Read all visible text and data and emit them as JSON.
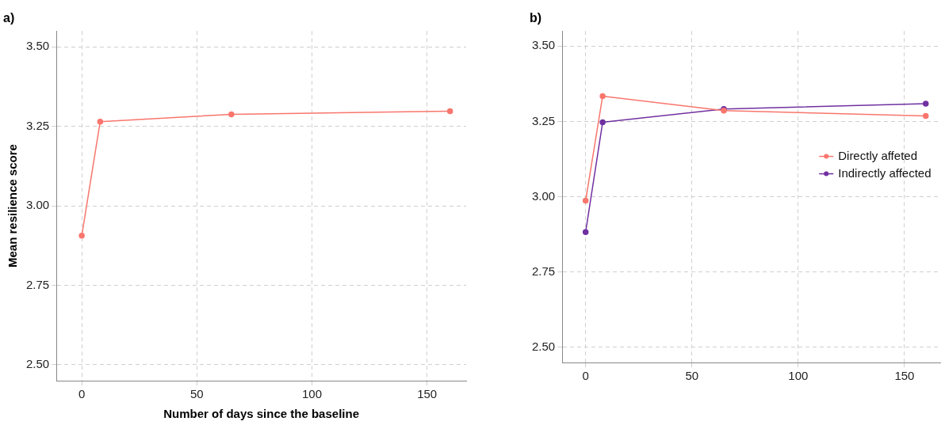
{
  "chart_data": [
    {
      "type": "line",
      "title": "a)",
      "xlabel": "Number of days since the baseline",
      "ylabel": "Mean resilience score",
      "x": [
        0,
        8,
        65,
        160
      ],
      "series": [
        {
          "color": "#f8766d",
          "values": [
            2.906,
            3.265,
            3.288,
            3.298
          ]
        }
      ],
      "xlim": [
        -11,
        167
      ],
      "xticks": [
        0,
        50,
        100,
        150
      ],
      "ylim": [
        2.45,
        3.55
      ],
      "yticks": [
        {
          "value": 2.5,
          "label": "2.50"
        },
        {
          "value": 2.75,
          "label": "2.75"
        },
        {
          "value": 3,
          "label": "3.00"
        },
        {
          "value": 3.25,
          "label": "3.25"
        },
        {
          "value": 3.5,
          "label": "3.50"
        }
      ],
      "grid": true,
      "marker": "circle"
    },
    {
      "type": "line",
      "title": "b)",
      "x": [
        0,
        8,
        65,
        160
      ],
      "series": [
        {
          "name": "Directly affeted",
          "color": "#f8766d",
          "values": [
            2.987,
            3.334,
            3.286,
            3.268
          ]
        },
        {
          "name": "Indirectly affected",
          "color": "#7030a0",
          "values": [
            2.883,
            3.247,
            3.291,
            3.309
          ]
        }
      ],
      "xlim": [
        -11,
        167
      ],
      "xticks": [
        0,
        50,
        100,
        150
      ],
      "ylim": [
        2.45,
        3.55
      ],
      "yticks": [
        {
          "value": 2.5,
          "label": "2.50"
        },
        {
          "value": 2.75,
          "label": "2.75"
        },
        {
          "value": 3,
          "label": "3.00"
        },
        {
          "value": 3.25,
          "label": "3.25"
        },
        {
          "value": 3.5,
          "label": "3.50"
        }
      ],
      "grid": true,
      "legend": "right",
      "marker": "circle"
    }
  ]
}
